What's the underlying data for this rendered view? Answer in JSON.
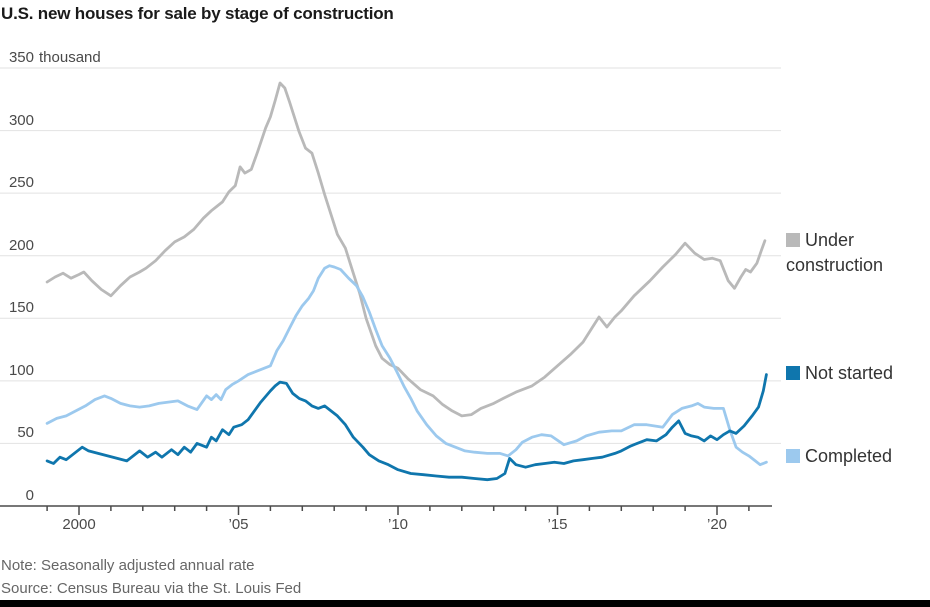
{
  "title": "U.S. new houses for sale by stage of construction",
  "note": "Note: Seasonally adjusted annual rate",
  "source": "Source: Census Bureau via the St. Louis Fed",
  "colors": {
    "under_construction": "#b9b9b9",
    "not_started": "#0f76ad",
    "completed": "#9cc9ee",
    "gridline": "#e2e2e2",
    "axis": "#4a4a4a",
    "title_text": "#1a1a1a",
    "tick_text": "#4a4a4a",
    "note_text": "#666666"
  },
  "legend": {
    "items": [
      {
        "label": "Under construction",
        "color": "#b9b9b9"
      },
      {
        "label": "Not started",
        "color": "#0f76ad"
      },
      {
        "label": "Completed",
        "color": "#9cc9ee"
      }
    ]
  },
  "chart_data": {
    "type": "line",
    "title": "U.S. new houses for sale by stage of construction",
    "xlabel": "",
    "ylabel": "thousand",
    "unit": "thousand",
    "xlim": [
      1998.8,
      2021.8
    ],
    "ylim": [
      0,
      350
    ],
    "yticks": [
      0,
      50,
      100,
      150,
      200,
      250,
      300,
      350
    ],
    "ytick_unit_on": 350,
    "xticks_labeled": [
      {
        "year": 2000,
        "label": "2000"
      },
      {
        "year": 2005,
        "label": "’05"
      },
      {
        "year": 2010,
        "label": "’10"
      },
      {
        "year": 2015,
        "label": "’15"
      },
      {
        "year": 2020,
        "label": "’20"
      }
    ],
    "xticks_minor_years": [
      1999,
      2000,
      2001,
      2002,
      2003,
      2004,
      2005,
      2006,
      2007,
      2008,
      2009,
      2010,
      2011,
      2012,
      2013,
      2014,
      2015,
      2016,
      2017,
      2018,
      2019,
      2020,
      2021
    ],
    "grid": "horizontal",
    "legend_position": "right",
    "series": [
      {
        "name": "Under construction",
        "color": "#b9b9b9",
        "points": [
          [
            1999.0,
            179
          ],
          [
            1999.25,
            183
          ],
          [
            1999.5,
            186
          ],
          [
            1999.75,
            182
          ],
          [
            2000.0,
            185
          ],
          [
            2000.15,
            187
          ],
          [
            2000.4,
            180
          ],
          [
            2000.7,
            173
          ],
          [
            2001.0,
            168
          ],
          [
            2001.3,
            176
          ],
          [
            2001.6,
            183
          ],
          [
            2001.9,
            187
          ],
          [
            2002.1,
            190
          ],
          [
            2002.4,
            196
          ],
          [
            2002.7,
            204
          ],
          [
            2003.0,
            211
          ],
          [
            2003.3,
            215
          ],
          [
            2003.6,
            221
          ],
          [
            2003.9,
            230
          ],
          [
            2004.15,
            236
          ],
          [
            2004.3,
            239
          ],
          [
            2004.5,
            243
          ],
          [
            2004.7,
            251
          ],
          [
            2004.9,
            256
          ],
          [
            2005.05,
            271
          ],
          [
            2005.2,
            266
          ],
          [
            2005.4,
            269
          ],
          [
            2005.6,
            283
          ],
          [
            2005.85,
            302
          ],
          [
            2006.0,
            311
          ],
          [
            2006.15,
            324
          ],
          [
            2006.3,
            338
          ],
          [
            2006.45,
            334
          ],
          [
            2006.6,
            323
          ],
          [
            2006.75,
            311
          ],
          [
            2006.9,
            299
          ],
          [
            2007.1,
            286
          ],
          [
            2007.3,
            282
          ],
          [
            2007.5,
            266
          ],
          [
            2007.7,
            249
          ],
          [
            2007.9,
            233
          ],
          [
            2008.1,
            217
          ],
          [
            2008.35,
            206
          ],
          [
            2008.6,
            186
          ],
          [
            2008.8,
            170
          ],
          [
            2009.0,
            150
          ],
          [
            2009.3,
            128
          ],
          [
            2009.5,
            118
          ],
          [
            2009.75,
            113
          ],
          [
            2010.0,
            110
          ],
          [
            2010.3,
            102
          ],
          [
            2010.7,
            93
          ],
          [
            2011.1,
            88
          ],
          [
            2011.4,
            81
          ],
          [
            2011.7,
            76
          ],
          [
            2012.0,
            72
          ],
          [
            2012.3,
            73
          ],
          [
            2012.6,
            78
          ],
          [
            2013.0,
            82
          ],
          [
            2013.3,
            86
          ],
          [
            2013.7,
            91
          ],
          [
            2014.2,
            96
          ],
          [
            2014.6,
            103
          ],
          [
            2015.0,
            112
          ],
          [
            2015.4,
            121
          ],
          [
            2015.8,
            131
          ],
          [
            2016.1,
            143
          ],
          [
            2016.3,
            151
          ],
          [
            2016.55,
            143
          ],
          [
            2016.8,
            151
          ],
          [
            2017.0,
            156
          ],
          [
            2017.4,
            168
          ],
          [
            2017.9,
            180
          ],
          [
            2018.3,
            191
          ],
          [
            2018.7,
            201
          ],
          [
            2019.0,
            210
          ],
          [
            2019.3,
            202
          ],
          [
            2019.6,
            197
          ],
          [
            2019.85,
            198
          ],
          [
            2020.1,
            196
          ],
          [
            2020.35,
            180
          ],
          [
            2020.55,
            174
          ],
          [
            2020.75,
            183
          ],
          [
            2020.9,
            189
          ],
          [
            2021.05,
            187
          ],
          [
            2021.25,
            194
          ],
          [
            2021.4,
            205
          ],
          [
            2021.5,
            212
          ]
        ]
      },
      {
        "name": "Completed",
        "color": "#9cc9ee",
        "points": [
          [
            1999.0,
            66
          ],
          [
            1999.3,
            70
          ],
          [
            1999.6,
            72
          ],
          [
            1999.9,
            76
          ],
          [
            2000.2,
            80
          ],
          [
            2000.5,
            85
          ],
          [
            2000.8,
            88
          ],
          [
            2001.0,
            86
          ],
          [
            2001.3,
            82
          ],
          [
            2001.6,
            80
          ],
          [
            2001.9,
            79
          ],
          [
            2002.2,
            80
          ],
          [
            2002.5,
            82
          ],
          [
            2002.8,
            83
          ],
          [
            2003.1,
            84
          ],
          [
            2003.4,
            80
          ],
          [
            2003.7,
            77
          ],
          [
            2004.0,
            88
          ],
          [
            2004.15,
            85
          ],
          [
            2004.3,
            89
          ],
          [
            2004.45,
            85
          ],
          [
            2004.6,
            93
          ],
          [
            2004.8,
            97
          ],
          [
            2005.0,
            100
          ],
          [
            2005.3,
            105
          ],
          [
            2005.6,
            108
          ],
          [
            2005.8,
            110
          ],
          [
            2006.0,
            112
          ],
          [
            2006.2,
            124
          ],
          [
            2006.4,
            132
          ],
          [
            2006.6,
            142
          ],
          [
            2006.8,
            152
          ],
          [
            2007.0,
            160
          ],
          [
            2007.2,
            166
          ],
          [
            2007.35,
            172
          ],
          [
            2007.5,
            182
          ],
          [
            2007.7,
            190
          ],
          [
            2007.85,
            192
          ],
          [
            2008.0,
            191
          ],
          [
            2008.2,
            189
          ],
          [
            2008.45,
            182
          ],
          [
            2008.7,
            176
          ],
          [
            2008.9,
            167
          ],
          [
            2009.1,
            155
          ],
          [
            2009.3,
            141
          ],
          [
            2009.5,
            128
          ],
          [
            2009.75,
            118
          ],
          [
            2009.95,
            108
          ],
          [
            2010.2,
            95
          ],
          [
            2010.4,
            86
          ],
          [
            2010.6,
            76
          ],
          [
            2010.9,
            65
          ],
          [
            2011.2,
            56
          ],
          [
            2011.5,
            50
          ],
          [
            2011.8,
            47
          ],
          [
            2012.1,
            44
          ],
          [
            2012.4,
            43
          ],
          [
            2012.8,
            42
          ],
          [
            2013.2,
            42
          ],
          [
            2013.45,
            40
          ],
          [
            2013.7,
            45
          ],
          [
            2013.9,
            51
          ],
          [
            2014.2,
            55
          ],
          [
            2014.5,
            57
          ],
          [
            2014.8,
            56
          ],
          [
            2015.2,
            49
          ],
          [
            2015.6,
            52
          ],
          [
            2015.9,
            56
          ],
          [
            2016.3,
            59
          ],
          [
            2016.7,
            60
          ],
          [
            2017.0,
            60
          ],
          [
            2017.4,
            65
          ],
          [
            2017.8,
            65
          ],
          [
            2018.3,
            63
          ],
          [
            2018.6,
            73
          ],
          [
            2018.9,
            78
          ],
          [
            2019.2,
            80
          ],
          [
            2019.4,
            82
          ],
          [
            2019.6,
            79
          ],
          [
            2019.9,
            78
          ],
          [
            2020.2,
            78
          ],
          [
            2020.4,
            61
          ],
          [
            2020.6,
            47
          ],
          [
            2020.8,
            43
          ],
          [
            2021.0,
            40
          ],
          [
            2021.2,
            36
          ],
          [
            2021.35,
            33
          ],
          [
            2021.55,
            35
          ]
        ]
      },
      {
        "name": "Not started",
        "color": "#0f76ad",
        "points": [
          [
            1999.0,
            36
          ],
          [
            1999.2,
            34
          ],
          [
            1999.4,
            39
          ],
          [
            1999.6,
            37
          ],
          [
            1999.8,
            41
          ],
          [
            2000.1,
            47
          ],
          [
            2000.3,
            44
          ],
          [
            2000.6,
            42
          ],
          [
            2000.9,
            40
          ],
          [
            2001.2,
            38
          ],
          [
            2001.5,
            36
          ],
          [
            2001.9,
            44
          ],
          [
            2002.15,
            39
          ],
          [
            2002.4,
            43
          ],
          [
            2002.6,
            39
          ],
          [
            2002.9,
            45
          ],
          [
            2003.1,
            41
          ],
          [
            2003.3,
            47
          ],
          [
            2003.5,
            43
          ],
          [
            2003.7,
            50
          ],
          [
            2004.0,
            47
          ],
          [
            2004.15,
            55
          ],
          [
            2004.3,
            52
          ],
          [
            2004.5,
            61
          ],
          [
            2004.7,
            57
          ],
          [
            2004.85,
            63
          ],
          [
            2005.1,
            65
          ],
          [
            2005.3,
            69
          ],
          [
            2005.5,
            76
          ],
          [
            2005.7,
            83
          ],
          [
            2006.0,
            92
          ],
          [
            2006.15,
            96
          ],
          [
            2006.3,
            99
          ],
          [
            2006.5,
            98
          ],
          [
            2006.7,
            90
          ],
          [
            2006.9,
            86
          ],
          [
            2007.1,
            84
          ],
          [
            2007.3,
            80
          ],
          [
            2007.5,
            78
          ],
          [
            2007.7,
            80
          ],
          [
            2007.9,
            76
          ],
          [
            2008.1,
            72
          ],
          [
            2008.35,
            65
          ],
          [
            2008.6,
            55
          ],
          [
            2008.9,
            47
          ],
          [
            2009.1,
            41
          ],
          [
            2009.4,
            36
          ],
          [
            2009.7,
            33
          ],
          [
            2010.0,
            29
          ],
          [
            2010.4,
            26
          ],
          [
            2010.8,
            25
          ],
          [
            2011.2,
            24
          ],
          [
            2011.6,
            23
          ],
          [
            2012.0,
            23
          ],
          [
            2012.4,
            22
          ],
          [
            2012.8,
            21
          ],
          [
            2013.1,
            22
          ],
          [
            2013.35,
            26
          ],
          [
            2013.5,
            38
          ],
          [
            2013.7,
            33
          ],
          [
            2014.0,
            31
          ],
          [
            2014.3,
            33
          ],
          [
            2014.6,
            34
          ],
          [
            2014.9,
            35
          ],
          [
            2015.2,
            34
          ],
          [
            2015.5,
            36
          ],
          [
            2015.8,
            37
          ],
          [
            2016.1,
            38
          ],
          [
            2016.4,
            39
          ],
          [
            2016.8,
            42
          ],
          [
            2017.0,
            44
          ],
          [
            2017.3,
            48
          ],
          [
            2017.6,
            51
          ],
          [
            2017.8,
            53
          ],
          [
            2018.1,
            52
          ],
          [
            2018.4,
            57
          ],
          [
            2018.6,
            63
          ],
          [
            2018.8,
            68
          ],
          [
            2019.0,
            58
          ],
          [
            2019.2,
            56
          ],
          [
            2019.4,
            55
          ],
          [
            2019.6,
            52
          ],
          [
            2019.8,
            56
          ],
          [
            2020.0,
            53
          ],
          [
            2020.2,
            57
          ],
          [
            2020.4,
            60
          ],
          [
            2020.6,
            58
          ],
          [
            2020.85,
            64
          ],
          [
            2021.1,
            72
          ],
          [
            2021.3,
            79
          ],
          [
            2021.45,
            92
          ],
          [
            2021.55,
            105
          ]
        ]
      }
    ]
  }
}
